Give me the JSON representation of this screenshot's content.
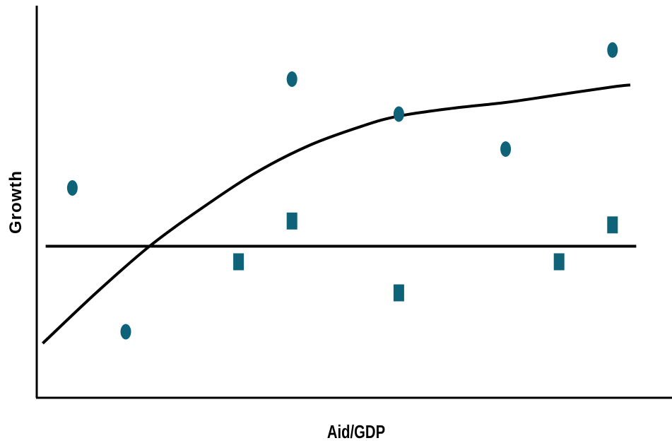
{
  "chart_data": {
    "type": "scatter",
    "xlabel": "Aid/GDP",
    "ylabel": "Growth",
    "xlim": [
      0,
      10
    ],
    "ylim": [
      0,
      10
    ],
    "grid": false,
    "series": [
      {
        "marker": "circle",
        "color": "#0e6378",
        "points": [
          {
            "x": 0.6,
            "y": 5.4
          },
          {
            "x": 1.5,
            "y": 1.7
          },
          {
            "x": 4.3,
            "y": 8.2
          },
          {
            "x": 6.1,
            "y": 7.3
          },
          {
            "x": 7.9,
            "y": 6.4
          },
          {
            "x": 9.7,
            "y": 8.95
          }
        ]
      },
      {
        "marker": "square",
        "color": "#0e6378",
        "points": [
          {
            "x": 3.4,
            "y": 3.5
          },
          {
            "x": 4.3,
            "y": 4.55
          },
          {
            "x": 6.1,
            "y": 2.7
          },
          {
            "x": 8.8,
            "y": 3.5
          },
          {
            "x": 9.7,
            "y": 4.45
          }
        ]
      }
    ],
    "lines": [
      {
        "kind": "horizontal",
        "color": "#000000",
        "points": [
          {
            "x": 0.15,
            "y": 3.9
          },
          {
            "x": 10.1,
            "y": 3.9
          }
        ]
      },
      {
        "kind": "curve",
        "color": "#000000",
        "points": [
          {
            "x": 0.1,
            "y": 1.4
          },
          {
            "x": 1.0,
            "y": 2.7
          },
          {
            "x": 1.9,
            "y": 3.9
          },
          {
            "x": 2.8,
            "y": 4.9
          },
          {
            "x": 3.7,
            "y": 5.8
          },
          {
            "x": 4.6,
            "y": 6.5
          },
          {
            "x": 5.5,
            "y": 7.0
          },
          {
            "x": 6.1,
            "y": 7.25
          },
          {
            "x": 7.0,
            "y": 7.45
          },
          {
            "x": 7.9,
            "y": 7.6
          },
          {
            "x": 8.8,
            "y": 7.8
          },
          {
            "x": 9.7,
            "y": 8.0
          },
          {
            "x": 10.0,
            "y": 8.05
          }
        ]
      }
    ]
  }
}
